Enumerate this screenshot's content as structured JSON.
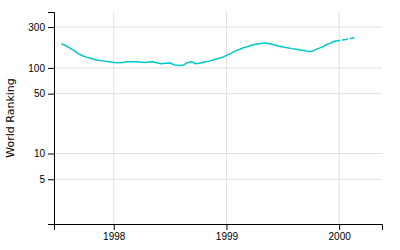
{
  "chart_data": {
    "type": "line",
    "ylabel": "World Ranking",
    "x": [
      1997.54,
      1997.58,
      1997.62,
      1997.65,
      1997.69,
      1997.73,
      1997.77,
      1997.81,
      1997.85,
      1997.88,
      1997.92,
      1997.96,
      1998.0,
      1998.04,
      1998.08,
      1998.12,
      1998.15,
      1998.19,
      1998.23,
      1998.27,
      1998.31,
      1998.35,
      1998.38,
      1998.42,
      1998.46,
      1998.5,
      1998.54,
      1998.58,
      1998.62,
      1998.65,
      1998.69,
      1998.73,
      1998.77,
      1998.81,
      1998.85,
      1998.88,
      1998.92,
      1998.96,
      1999.0,
      1999.04,
      1999.08,
      1999.12,
      1999.15,
      1999.19,
      1999.23,
      1999.27,
      1999.31,
      1999.35,
      1999.38,
      1999.42,
      1999.46,
      1999.5,
      1999.54,
      1999.58,
      1999.62,
      1999.65,
      1999.69,
      1999.73,
      1999.77,
      1999.81,
      1999.85,
      1999.88,
      1999.92,
      1999.96,
      2000.06,
      2000.13
    ],
    "series": [
      {
        "color": "#00c8c8",
        "line_style": "solid",
        "values": [
          190,
          180,
          168,
          158,
          145,
          138,
          132,
          128,
          124,
          122,
          120,
          118,
          116,
          115,
          116,
          118,
          118,
          118,
          117,
          116,
          117,
          118,
          115,
          112,
          113,
          114,
          108,
          107,
          108,
          115,
          118,
          112,
          114,
          118,
          120,
          124,
          128,
          132,
          140,
          148,
          158,
          165,
          172,
          178,
          185,
          190,
          193,
          195,
          192,
          186,
          180,
          175,
          172,
          168,
          165,
          162,
          160,
          155,
          158,
          168,
          175,
          185,
          195,
          205,
          null,
          null
        ]
      },
      {
        "color": "#00c8c8",
        "line_style": "dashed",
        "values": [
          null,
          null,
          null,
          null,
          null,
          null,
          null,
          null,
          null,
          null,
          null,
          null,
          null,
          null,
          null,
          null,
          null,
          null,
          null,
          null,
          null,
          null,
          null,
          null,
          null,
          null,
          null,
          null,
          null,
          null,
          null,
          null,
          null,
          null,
          null,
          null,
          null,
          null,
          null,
          null,
          null,
          null,
          null,
          null,
          null,
          null,
          null,
          null,
          null,
          null,
          null,
          null,
          null,
          null,
          null,
          null,
          null,
          null,
          null,
          null,
          null,
          null,
          null,
          205,
          215,
          225
        ]
      }
    ],
    "xlim": [
      1997.47,
      2000.38
    ],
    "xticks": [
      1998,
      1999,
      2000
    ],
    "ylim": [
      1.5,
      450
    ],
    "yticks": [
      5,
      10,
      50,
      100,
      300
    ],
    "log": "y",
    "grid": true
  }
}
